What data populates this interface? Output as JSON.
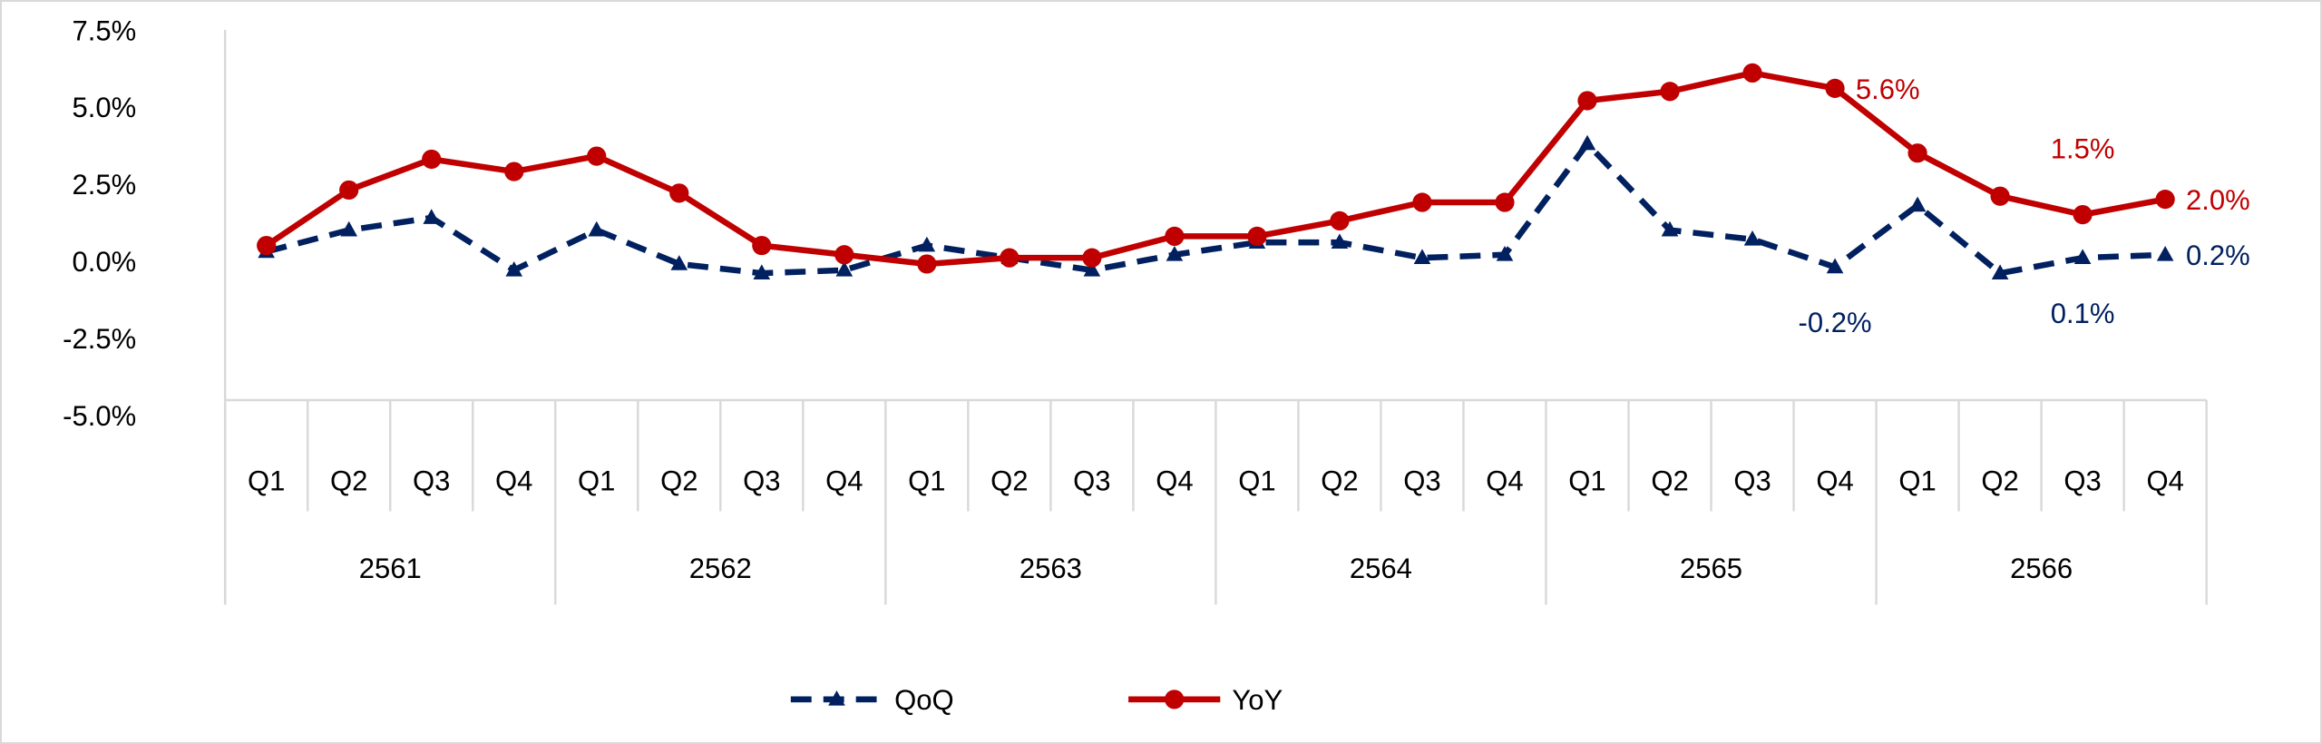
{
  "chart_data": {
    "type": "line",
    "title": "",
    "xlabel": "",
    "ylabel": "",
    "ylim": [
      -5.0,
      7.5
    ],
    "yticks": [
      "7.5%",
      "5.0%",
      "2.5%",
      "0.0%",
      "-2.5%",
      "-5.0%"
    ],
    "ytick_values": [
      7.5,
      5.0,
      2.5,
      0.0,
      -2.5,
      -5.0
    ],
    "years": [
      "2561",
      "2562",
      "2563",
      "2564",
      "2565",
      "2566"
    ],
    "quarters": [
      "Q1",
      "Q2",
      "Q3",
      "Q4"
    ],
    "grid": false,
    "legend_position": "bottom",
    "series": [
      {
        "name": "QoQ",
        "color": "#002060",
        "style": "dashed",
        "marker": "triangle",
        "values": [
          0.3,
          1.0,
          1.4,
          -0.3,
          1.0,
          -0.1,
          -0.4,
          -0.3,
          0.5,
          0.1,
          -0.3,
          0.2,
          0.6,
          0.6,
          0.1,
          0.2,
          3.8,
          1.0,
          0.7,
          -0.2,
          1.8,
          -0.4,
          0.1,
          0.2
        ],
        "labels": [
          {
            "index": 19,
            "text": "-0.2%",
            "pos": "below"
          },
          {
            "index": 22,
            "text": "0.1%",
            "pos": "below"
          },
          {
            "index": 23,
            "text": "0.2%",
            "pos": "right"
          }
        ]
      },
      {
        "name": "YoY",
        "color": "#c00000",
        "style": "solid",
        "marker": "circle",
        "values": [
          0.5,
          2.3,
          3.3,
          2.9,
          3.4,
          2.2,
          0.5,
          0.2,
          -0.1,
          0.1,
          0.1,
          0.8,
          0.8,
          1.3,
          1.9,
          1.9,
          5.2,
          5.5,
          6.1,
          5.6,
          3.5,
          2.1,
          1.5,
          2.0
        ],
        "labels": [
          {
            "index": 19,
            "text": "5.6%",
            "pos": "right"
          },
          {
            "index": 22,
            "text": "1.5%",
            "pos": "above"
          },
          {
            "index": 23,
            "text": "2.0%",
            "pos": "right"
          }
        ]
      }
    ]
  }
}
